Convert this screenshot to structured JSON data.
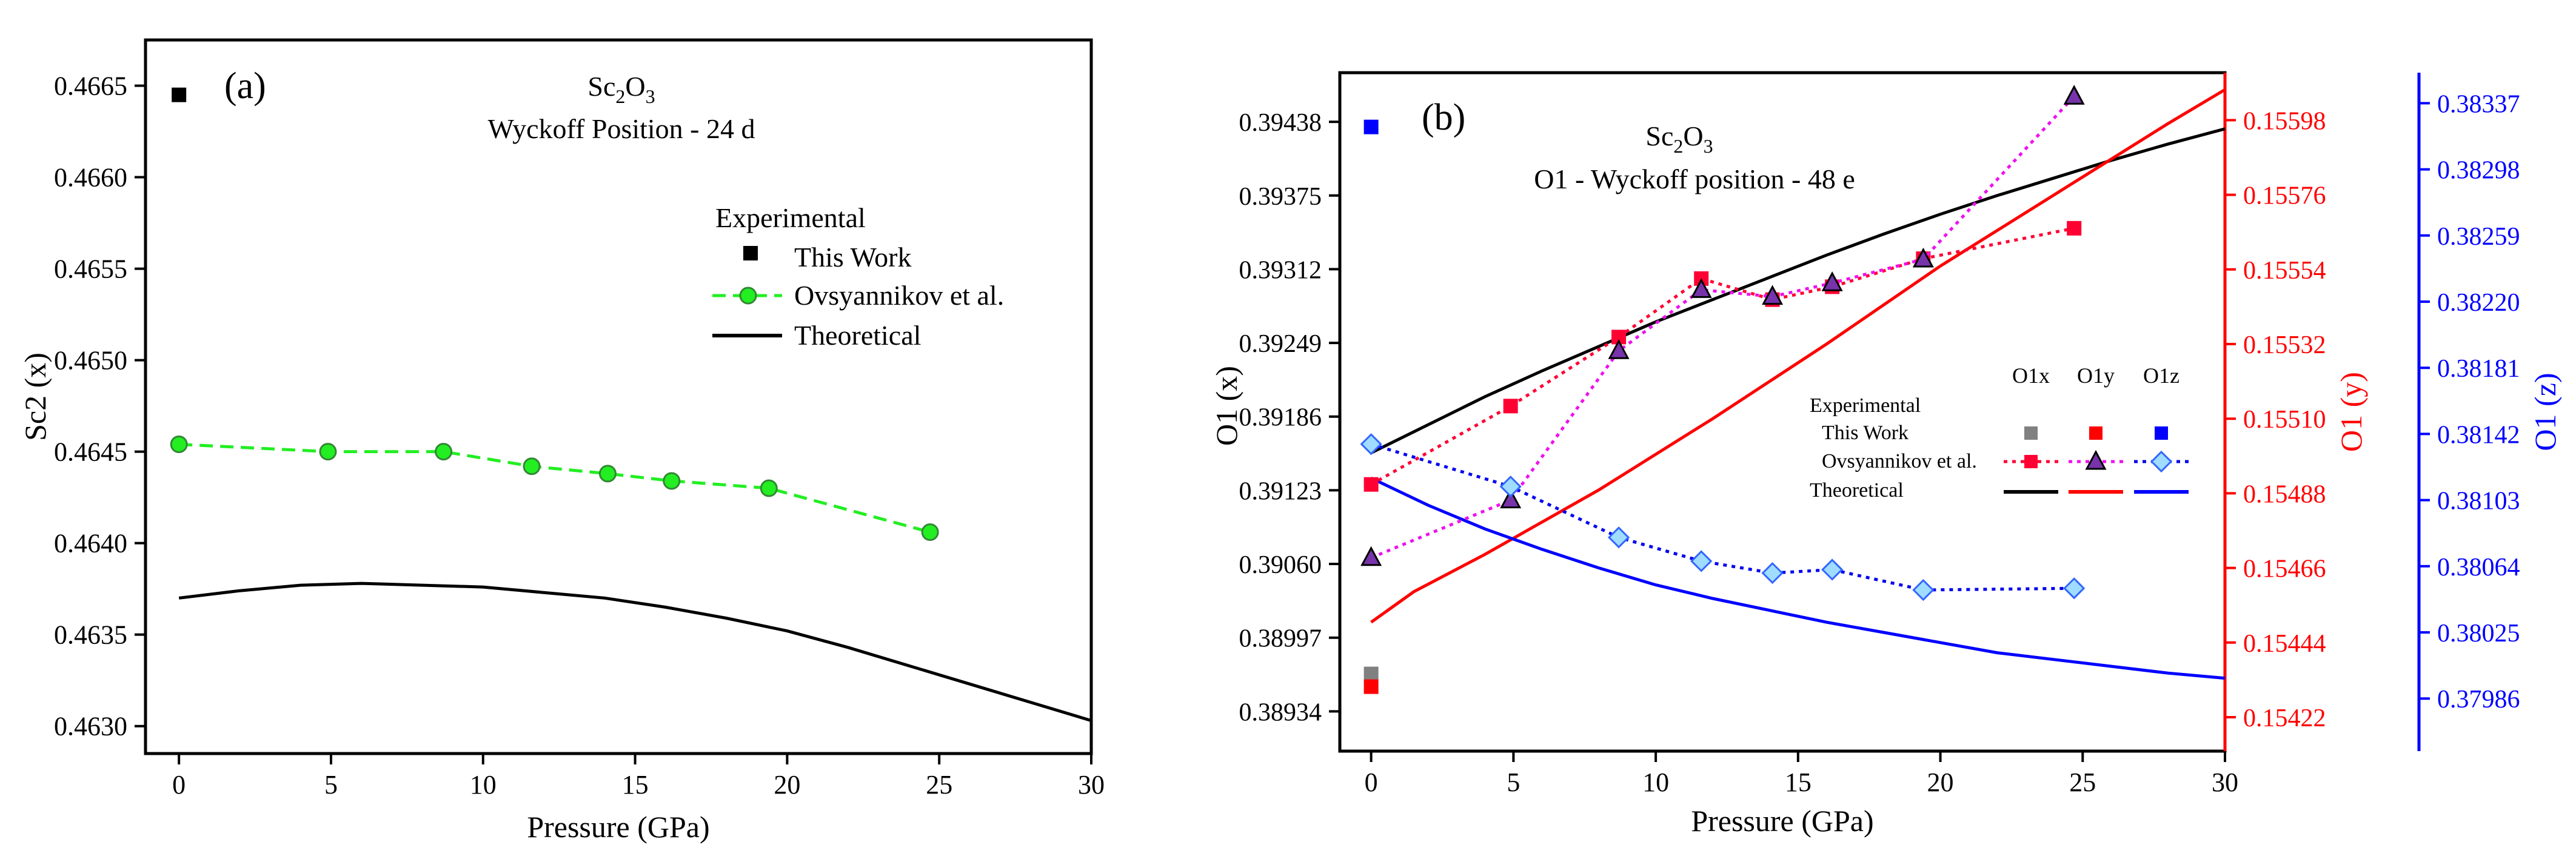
{
  "chart_data": [
    {
      "panel_label": "(a)",
      "type": "scatter",
      "title_parts": [
        "Sc",
        "2",
        "O",
        "3"
      ],
      "title_line2": "Wyckoff Position - 24 d",
      "xlabel": "Pressure (GPa)",
      "ylabel": "Sc2 (x)",
      "xlim": [
        -1.1,
        30
      ],
      "ylim": [
        0.46285,
        0.46675
      ],
      "xticks": [
        0,
        5,
        10,
        15,
        20,
        25,
        30
      ],
      "xtick_labels": [
        "0",
        "5",
        "10",
        "15",
        "20",
        "25",
        "30"
      ],
      "yticks": [
        0.463,
        0.4635,
        0.464,
        0.4645,
        0.465,
        0.4655,
        0.466,
        0.4665
      ],
      "ytick_labels": [
        "0.4630",
        "0.4635",
        "0.4640",
        "0.4645",
        "0.4650",
        "0.4655",
        "0.4660",
        "0.4665"
      ],
      "legend_title": "Experimental",
      "legend": [
        "This Work",
        "Ovsyannikov et al.",
        "Theoretical"
      ],
      "series": [
        {
          "name": "This Work",
          "style": "square",
          "color": "#000000",
          "x": [
            0
          ],
          "y": [
            0.46645
          ]
        },
        {
          "name": "Ovsyannikov et al.",
          "style": "circle-dashed",
          "color": "#22ee22",
          "x": [
            0,
            4.9,
            8.7,
            11.6,
            14.1,
            16.2,
            19.4,
            24.7
          ],
          "y": [
            0.46454,
            0.4645,
            0.4645,
            0.46442,
            0.46438,
            0.46434,
            0.4643,
            0.46406
          ]
        },
        {
          "name": "Theoretical",
          "style": "line",
          "color": "#000000",
          "x": [
            0,
            2,
            4,
            6,
            8,
            10,
            12,
            14,
            16,
            18,
            20,
            22,
            24,
            26,
            28,
            30
          ],
          "y": [
            0.4637,
            0.46374,
            0.46377,
            0.46378,
            0.46377,
            0.46376,
            0.46373,
            0.4637,
            0.46365,
            0.46359,
            0.46352,
            0.46343,
            0.46333,
            0.46323,
            0.46313,
            0.46303
          ]
        }
      ]
    },
    {
      "panel_label": "(b)",
      "type": "scatter",
      "title_parts": [
        "Sc",
        "2",
        "O",
        "3"
      ],
      "title_line2": "O1 - Wyckoff position - 48 e",
      "xlabel": "Pressure (GPa)",
      "ylabel_left": "O1 (x)",
      "ylabel_right": "O1 (y)",
      "ylabel_far_right": "O1 (z)",
      "xlim": [
        -1.1,
        30
      ],
      "xticks": [
        0,
        5,
        10,
        15,
        20,
        25,
        30
      ],
      "xtick_labels": [
        "0",
        "5",
        "10",
        "15",
        "20",
        "25",
        "30"
      ],
      "ylim_x": [
        0.389,
        0.3948
      ],
      "yticks_x": [
        0.38934,
        0.38997,
        0.3906,
        0.39123,
        0.39186,
        0.39249,
        0.39312,
        0.39375,
        0.39438
      ],
      "ytick_labels_x": [
        "0.38934",
        "0.38997",
        "0.39060",
        "0.39123",
        "0.39186",
        "0.39249",
        "0.39312",
        "0.39375",
        "0.39438"
      ],
      "ylim_y": [
        0.15412,
        0.15612
      ],
      "yticks_y": [
        0.15422,
        0.15444,
        0.15466,
        0.15488,
        0.1551,
        0.15532,
        0.15554,
        0.15576,
        0.15598
      ],
      "ytick_labels_y": [
        "0.15422",
        "0.15444",
        "0.15466",
        "0.15488",
        "0.15510",
        "0.15532",
        "0.15554",
        "0.15576",
        "0.15598"
      ],
      "ylim_z": [
        0.37955,
        0.38355
      ],
      "yticks_z": [
        0.37986,
        0.38025,
        0.38064,
        0.38103,
        0.38142,
        0.38181,
        0.3822,
        0.38259,
        0.38298,
        0.38337
      ],
      "ytick_labels_z": [
        "0.37986",
        "0.38025",
        "0.38064",
        "0.38103",
        "0.38142",
        "0.38181",
        "0.38220",
        "0.38259",
        "0.38298",
        "0.38337"
      ],
      "legend_header": [
        "O1x",
        "O1y",
        "O1z"
      ],
      "legend_rows": [
        "Experimental",
        "This Work",
        "Ovsyannikov et al.",
        "Theoretical"
      ],
      "series": [
        {
          "name": "O1x This Work",
          "axis": "x",
          "style": "square",
          "color": "#808080",
          "x": [
            0
          ],
          "y": [
            0.38966
          ]
        },
        {
          "name": "O1y This Work",
          "axis": "y",
          "style": "square",
          "color": "#ff0000",
          "x": [
            0
          ],
          "y": [
            0.15431
          ]
        },
        {
          "name": "O1z This Work",
          "axis": "z",
          "style": "square",
          "color": "#0000ff",
          "x": [
            0
          ],
          "y": [
            0.38323
          ]
        },
        {
          "name": "O1x Ovsyannikov et al.",
          "axis": "x",
          "style": "square-dotted",
          "color": "#ff0033",
          "x": [
            0,
            4.9,
            8.7,
            11.6,
            14.1,
            16.2,
            19.4,
            24.7
          ],
          "y": [
            0.39128,
            0.39195,
            0.39254,
            0.39304,
            0.39286,
            0.39297,
            0.39321,
            0.39347
          ]
        },
        {
          "name": "O1y Ovsyannikov et al.",
          "axis": "y",
          "style": "triangle-dotted",
          "color": "#ee11ee",
          "x": [
            0,
            4.9,
            8.7,
            11.6,
            14.1,
            16.2,
            19.4,
            24.7
          ],
          "y": [
            0.15469,
            0.15486,
            0.1553,
            0.15548,
            0.15546,
            0.1555,
            0.15557,
            0.15605
          ]
        },
        {
          "name": "O1z Ovsyannikov et al.",
          "axis": "z",
          "style": "diamond-dotted",
          "color": "#0000ee",
          "x": [
            0,
            4.9,
            8.7,
            11.6,
            14.1,
            16.2,
            19.4,
            24.7
          ],
          "y": [
            0.38136,
            0.38111,
            0.38081,
            0.38067,
            0.3806,
            0.38062,
            0.3805,
            0.38051
          ]
        },
        {
          "name": "O1x Theoretical",
          "axis": "x",
          "style": "line",
          "color": "#000000",
          "x": [
            0,
            2,
            4,
            6,
            8,
            10,
            12,
            14,
            16,
            18,
            20,
            22,
            24,
            26,
            28,
            30
          ],
          "y": [
            0.39155,
            0.39179,
            0.39203,
            0.39225,
            0.39246,
            0.39267,
            0.39286,
            0.39305,
            0.39324,
            0.39342,
            0.39359,
            0.39375,
            0.3939,
            0.39405,
            0.39419,
            0.39432
          ]
        },
        {
          "name": "O1y Theoretical",
          "axis": "y",
          "style": "line",
          "color": "#ff0000",
          "x": [
            0,
            1.5,
            4,
            8,
            12,
            16,
            20,
            24,
            28,
            30
          ],
          "y": [
            0.1545,
            0.15459,
            0.1547,
            0.15489,
            0.1551,
            0.15532,
            0.15555,
            0.15576,
            0.15597,
            0.15607
          ]
        },
        {
          "name": "O1z Theoretical",
          "axis": "z",
          "style": "line",
          "color": "#0000ff",
          "x": [
            0,
            2,
            4,
            6,
            8,
            10,
            12,
            14,
            16,
            18,
            20,
            22,
            24,
            26,
            28,
            30
          ],
          "y": [
            0.38116,
            0.381,
            0.38086,
            0.38074,
            0.38063,
            0.38053,
            0.38045,
            0.38038,
            0.38031,
            0.38025,
            0.38019,
            0.38013,
            0.38009,
            0.38005,
            0.38001,
            0.37998
          ]
        }
      ]
    }
  ]
}
